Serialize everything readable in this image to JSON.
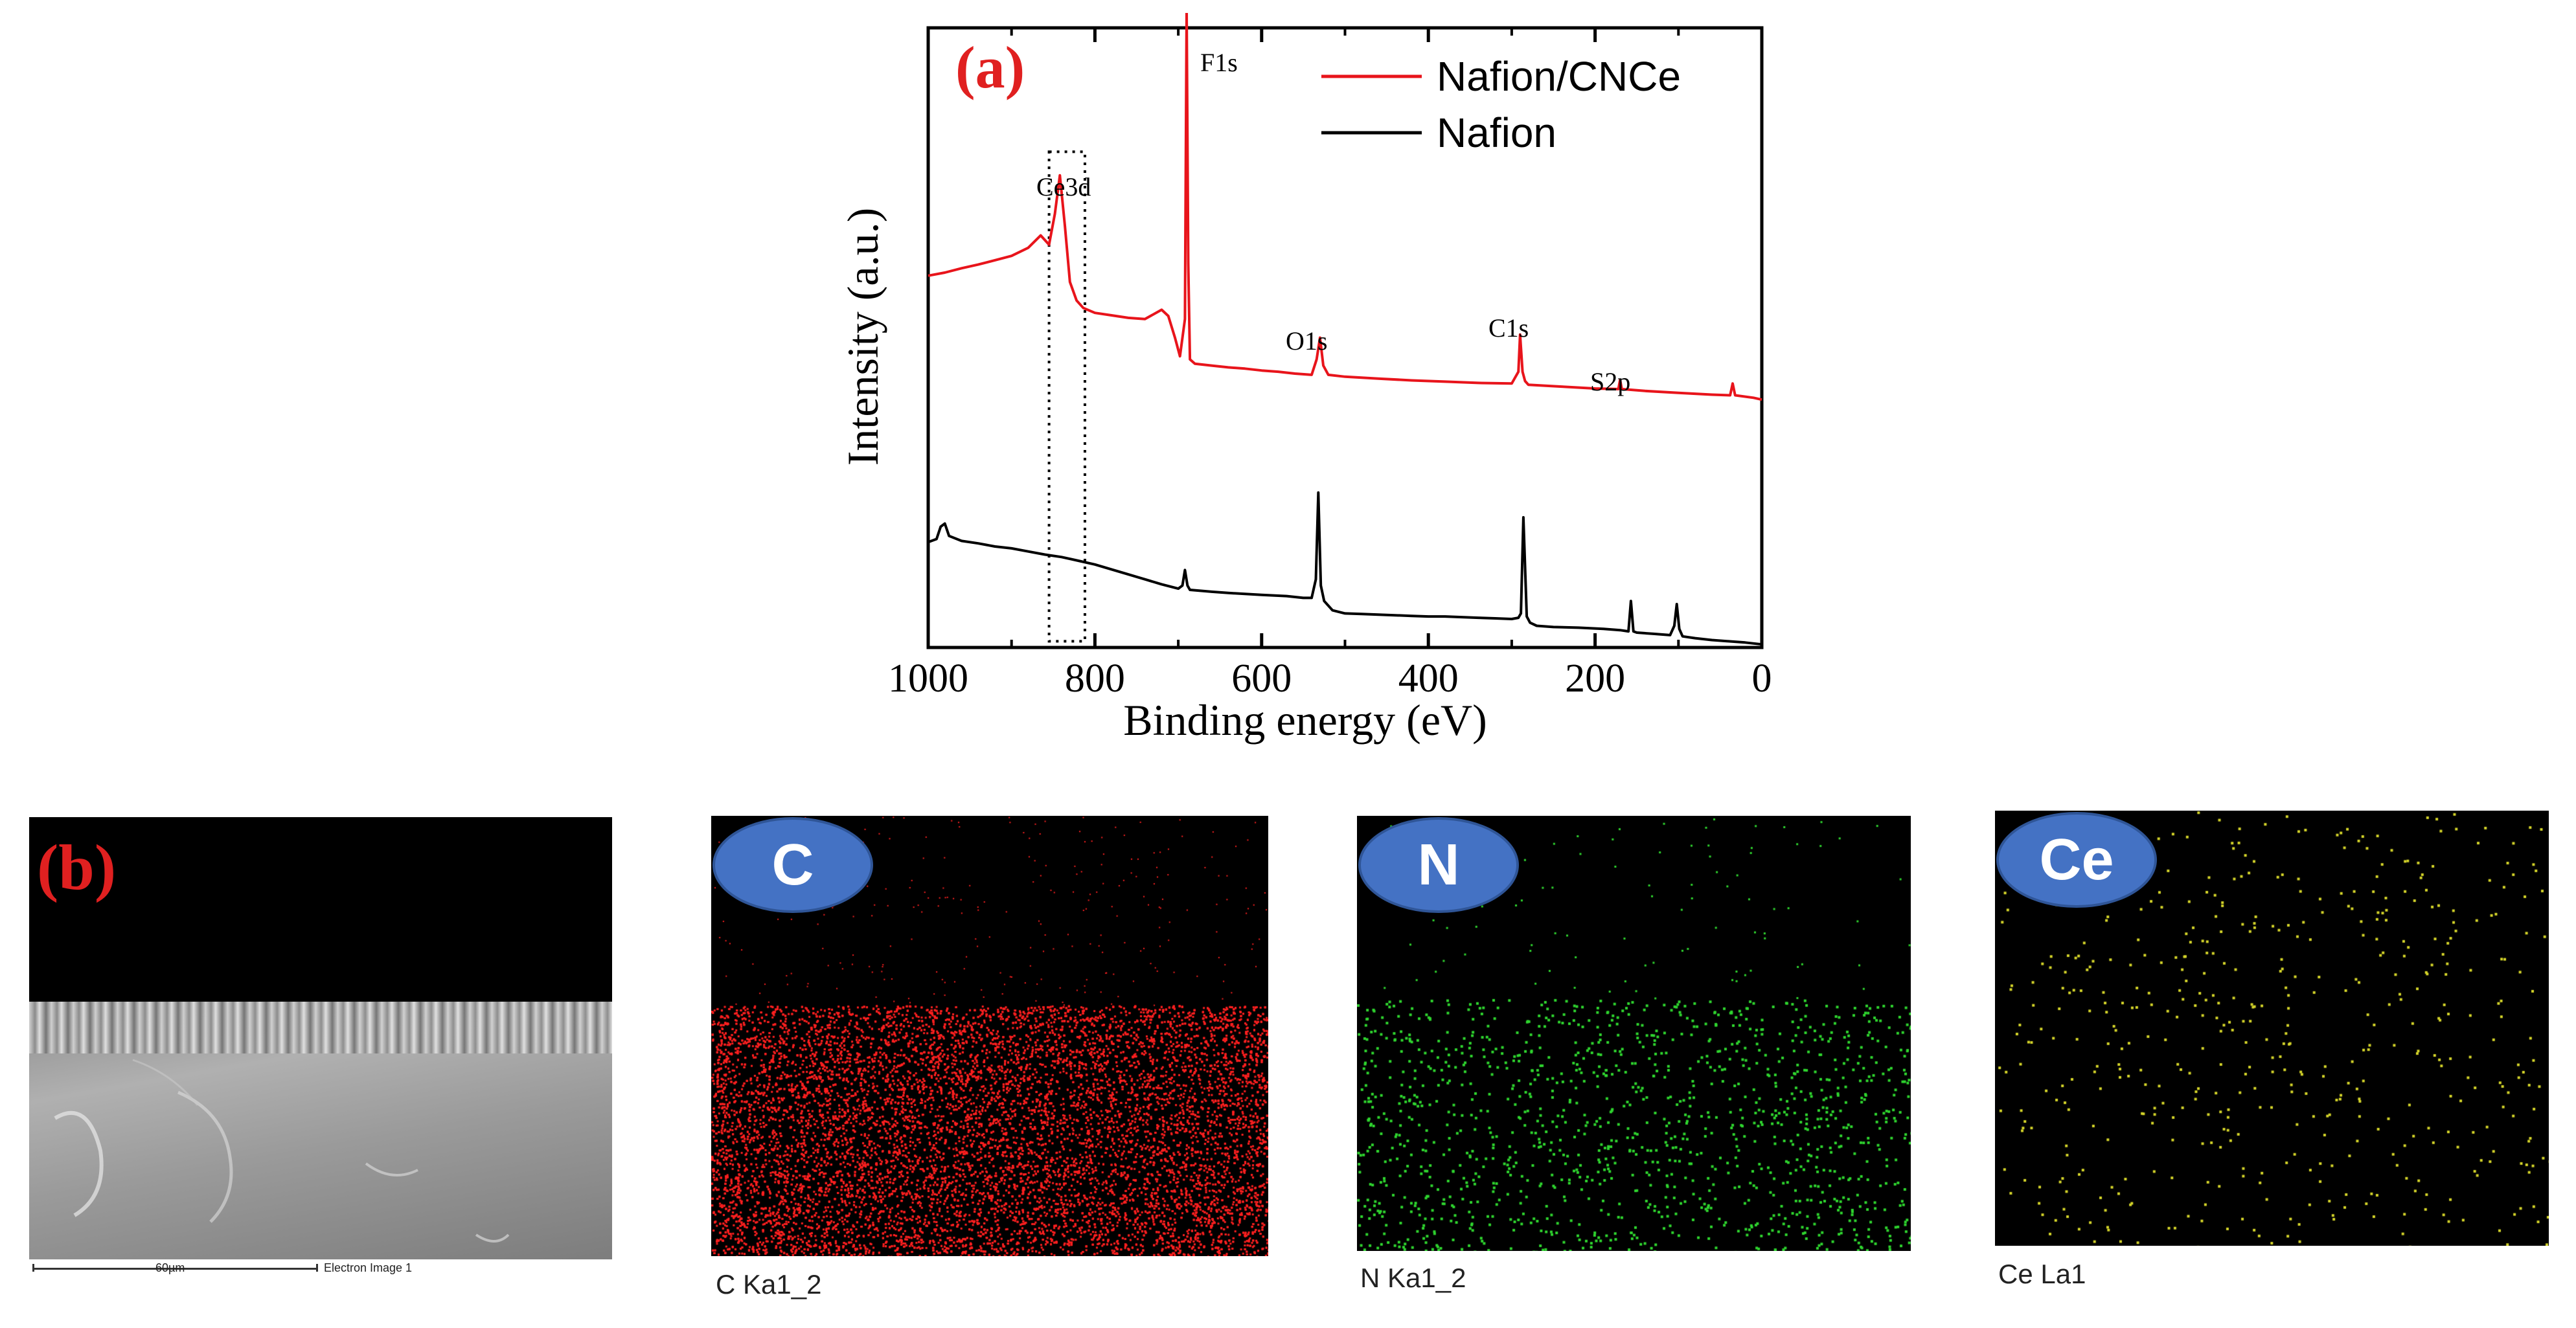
{
  "chart_data": {
    "type": "line",
    "panel_label": "(a)",
    "xlabel": "Binding energy (eV)",
    "ylabel": "Intensity (a.u.)",
    "xlim": [
      1000,
      0
    ],
    "x_ticks": [
      "1000",
      "800",
      "600",
      "400",
      "200",
      "0"
    ],
    "legend": [
      "Nafion/CNCe",
      "Nafion"
    ],
    "legend_position": "top-right",
    "colors": {
      "Nafion/CNCe": "#e8141b",
      "Nafion": "#000000"
    },
    "annotations": [
      "F1s",
      "Ce3d",
      "O1s",
      "C1s",
      "S2p"
    ],
    "ce3d_box_range_ev": [
      855,
      812
    ],
    "series": [
      {
        "name": "Nafion/CNCe",
        "x": [
          1000,
          980,
          960,
          940,
          920,
          900,
          880,
          865,
          855,
          848,
          842,
          836,
          830,
          822,
          814,
          800,
          780,
          760,
          740,
          720,
          712,
          704,
          698,
          692,
          690,
          688,
          686,
          680,
          660,
          640,
          620,
          600,
          580,
          560,
          540,
          534,
          530,
          526,
          520,
          500,
          460,
          420,
          380,
          340,
          300,
          292,
          290,
          287,
          284,
          280,
          240,
          200,
          172,
          170,
          168,
          140,
          100,
          60,
          38,
          35,
          32,
          10,
          0
        ],
        "y": [
          0.6,
          0.605,
          0.612,
          0.618,
          0.625,
          0.632,
          0.645,
          0.665,
          0.65,
          0.7,
          0.762,
          0.68,
          0.59,
          0.56,
          0.548,
          0.54,
          0.536,
          0.532,
          0.53,
          0.545,
          0.535,
          0.5,
          0.47,
          0.53,
          1.03,
          0.62,
          0.465,
          0.458,
          0.455,
          0.452,
          0.45,
          0.447,
          0.445,
          0.442,
          0.44,
          0.465,
          0.5,
          0.455,
          0.44,
          0.437,
          0.434,
          0.431,
          0.429,
          0.427,
          0.426,
          0.445,
          0.505,
          0.445,
          0.43,
          0.424,
          0.421,
          0.418,
          0.417,
          0.432,
          0.417,
          0.414,
          0.411,
          0.408,
          0.407,
          0.426,
          0.407,
          0.403,
          0.4
        ]
      },
      {
        "name": "Nafion",
        "x": [
          1000,
          990,
          985,
          980,
          975,
          960,
          940,
          920,
          900,
          880,
          860,
          840,
          820,
          800,
          780,
          760,
          740,
          720,
          700,
          695,
          692,
          689,
          686,
          660,
          640,
          600,
          570,
          550,
          540,
          535,
          532,
          529,
          525,
          515,
          500,
          480,
          460,
          440,
          420,
          400,
          380,
          360,
          340,
          320,
          300,
          292,
          289,
          286,
          282,
          278,
          270,
          250,
          220,
          190,
          170,
          160,
          157,
          154,
          150,
          130,
          110,
          105,
          102,
          99,
          95,
          80,
          60,
          40,
          20,
          0
        ],
        "y": [
          0.17,
          0.175,
          0.195,
          0.2,
          0.18,
          0.172,
          0.168,
          0.163,
          0.16,
          0.155,
          0.15,
          0.146,
          0.14,
          0.134,
          0.126,
          0.118,
          0.11,
          0.102,
          0.095,
          0.1,
          0.125,
          0.1,
          0.093,
          0.09,
          0.088,
          0.085,
          0.083,
          0.08,
          0.08,
          0.11,
          0.25,
          0.1,
          0.075,
          0.06,
          0.055,
          0.054,
          0.053,
          0.052,
          0.051,
          0.05,
          0.05,
          0.049,
          0.048,
          0.047,
          0.046,
          0.048,
          0.055,
          0.21,
          0.05,
          0.04,
          0.035,
          0.033,
          0.032,
          0.03,
          0.028,
          0.026,
          0.075,
          0.026,
          0.024,
          0.022,
          0.02,
          0.035,
          0.07,
          0.03,
          0.018,
          0.015,
          0.012,
          0.01,
          0.008,
          0.005
        ]
      }
    ]
  },
  "sem_panel": {
    "panel_label": "(b)",
    "scale_bar_label": "60µm",
    "image_label": "Electron Image 1"
  },
  "eds_maps": [
    {
      "element": "C",
      "caption": "C Ka1_2",
      "color": "#ff2020"
    },
    {
      "element": "N",
      "caption": "N Ka1_2",
      "color": "#2fd62f"
    },
    {
      "element": "Ce",
      "caption": "Ce La1",
      "color": "#d6d62a"
    }
  ]
}
